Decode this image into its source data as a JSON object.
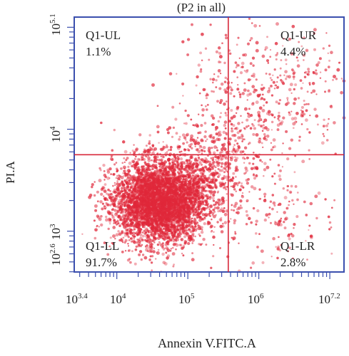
{
  "chart_data": {
    "type": "scatter",
    "title": "(P2 in all)",
    "xlabel": "Annexin V.FITC.A",
    "ylabel": "PI.A",
    "x_scale": "log10",
    "y_scale": "log10",
    "xlim_exp": [
      3.4,
      7.2
    ],
    "ylim_exp": [
      2.6,
      5.1
    ],
    "x_ticks": [
      {
        "base": "10",
        "exp": "3.4",
        "value_exp": 3.4
      },
      {
        "base": "10",
        "exp": "4",
        "value_exp": 4
      },
      {
        "base": "10",
        "exp": "5",
        "value_exp": 5
      },
      {
        "base": "10",
        "exp": "6",
        "value_exp": 6
      },
      {
        "base": "10",
        "exp": "7.2",
        "value_exp": 7.2
      }
    ],
    "y_ticks": [
      {
        "base": "10",
        "exp": "2.6",
        "value_exp": 2.6
      },
      {
        "base": "10",
        "exp": "3",
        "value_exp": 3
      },
      {
        "base": "10",
        "exp": "4",
        "value_exp": 4
      },
      {
        "base": "10",
        "exp": "5.1",
        "value_exp": 5.1
      }
    ],
    "gate_x_exp": 5.57,
    "gate_y_exp": 3.75,
    "quadrants": [
      {
        "name": "Q1-UL",
        "percent": "1.1%"
      },
      {
        "name": "Q1-UR",
        "percent": "4.4%"
      },
      {
        "name": "Q1-LL",
        "percent": "91.7%"
      },
      {
        "name": "Q1-LR",
        "percent": "2.8%"
      }
    ],
    "populations": [
      {
        "cx_exp": 4.6,
        "cy_exp": 3.28,
        "sx": 0.32,
        "sy": 0.2,
        "count": 4200
      },
      {
        "cx_exp": 5.2,
        "cy_exp": 3.6,
        "sx": 0.42,
        "sy": 0.22,
        "count": 650
      },
      {
        "cx_exp": 6.2,
        "cy_exp": 4.35,
        "sx": 0.55,
        "sy": 0.32,
        "count": 380
      },
      {
        "cx_exp": 6.2,
        "cy_exp": 3.1,
        "sx": 0.5,
        "sy": 0.25,
        "count": 150
      },
      {
        "cx_exp": 5.5,
        "cy_exp": 4.25,
        "sx": 0.45,
        "sy": 0.3,
        "count": 120
      }
    ],
    "colors": {
      "frame": "#3b4fae",
      "gate": "#d8283a",
      "dots": "#e0283a"
    },
    "grid": false,
    "legend": "none"
  }
}
